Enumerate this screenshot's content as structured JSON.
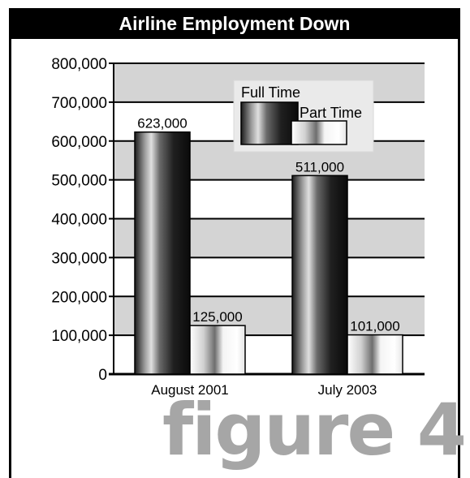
{
  "figure_label": "figure 4",
  "chart_data": {
    "type": "bar",
    "title": "Airline Employment Down",
    "categories": [
      "August 2001",
      "July 2003"
    ],
    "series": [
      {
        "name": "Full Time",
        "values": [
          623000,
          511000
        ],
        "value_labels": [
          "623,000",
          "511,000"
        ]
      },
      {
        "name": "Part Time",
        "values": [
          125000,
          101000
        ],
        "value_labels": [
          "125,000",
          "101,000"
        ]
      }
    ],
    "ylim": [
      0,
      800000
    ],
    "yticks": [
      0,
      100000,
      200000,
      300000,
      400000,
      500000,
      600000,
      700000,
      800000
    ],
    "ytick_labels": [
      "0",
      "100,000",
      "200,000",
      "300,000",
      "400,000",
      "500,000",
      "600,000",
      "700,000",
      "800,000"
    ],
    "xlabel": "",
    "ylabel": "",
    "grid": true,
    "legend_position": "top-center",
    "colors": {
      "full_time": "#222222",
      "part_time": "#f2f2f2",
      "band": "#d4d4d4"
    }
  }
}
